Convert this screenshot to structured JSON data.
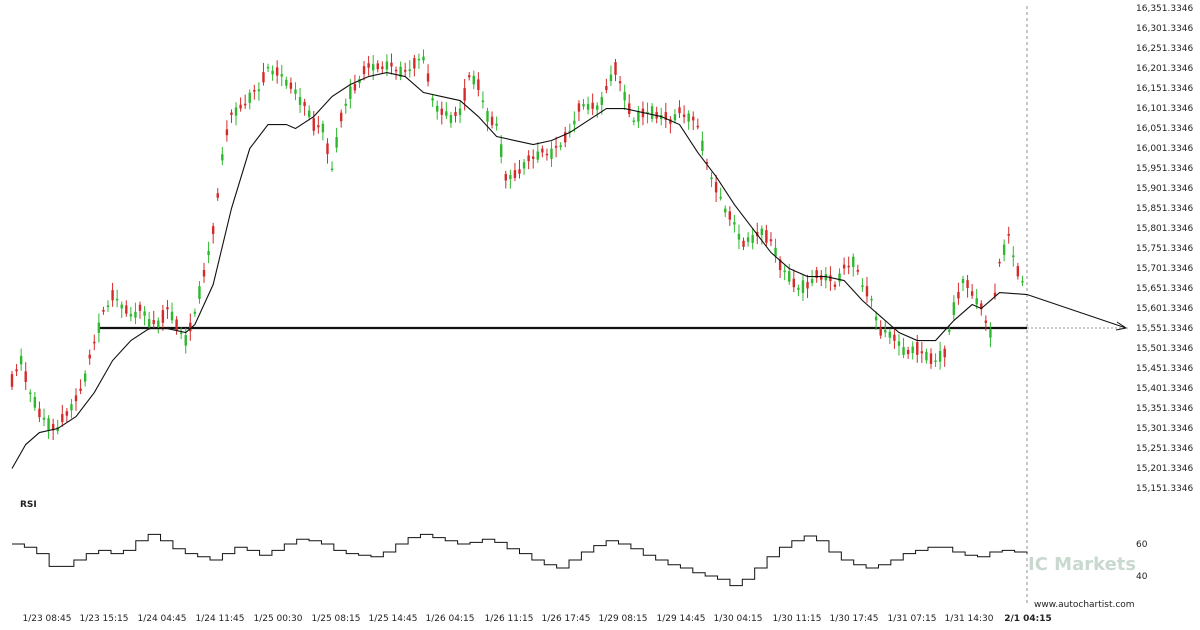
{
  "chart_data": [
    {
      "type": "candlestick",
      "price_range": [
        15151.3346,
        16351.3346
      ],
      "y_ticks": [
        "16,351.3346",
        "16,301.3346",
        "16,251.3346",
        "16,201.3346",
        "16,151.3346",
        "16,101.3346",
        "16,051.3346",
        "16,001.3346",
        "15,951.3346",
        "15,901.3346",
        "15,851.3346",
        "15,801.3346",
        "15,751.3346",
        "15,701.3346",
        "15,651.3346",
        "15,601.3346",
        "15,551.3346",
        "15,501.3346",
        "15,451.3346",
        "15,401.3346",
        "15,351.3346",
        "15,301.3346",
        "15,251.3346",
        "15,201.3346",
        "15,151.3346"
      ],
      "x_ticks": [
        "1/23 08:45",
        "1/23 15:15",
        "1/24 04:45",
        "1/24 11:45",
        "1/25 00:30",
        "1/25 08:15",
        "1/25 14:45",
        "1/26 04:15",
        "1/26 11:15",
        "1/26 17:45",
        "1/29 08:15",
        "1/29 14:45",
        "1/30 04:15",
        "1/30 11:15",
        "1/30 17:45",
        "1/31 07:15",
        "1/31 14:30",
        "2/1 04:15"
      ],
      "highlighted_x_tick": "2/1 04:15",
      "support_level": 15551.3346,
      "forecast_target": 15551.3346,
      "close_points": [
        [
          0,
          15420
        ],
        [
          2,
          15470
        ],
        [
          4,
          15390
        ],
        [
          6,
          15340
        ],
        [
          8,
          15310
        ],
        [
          10,
          15300
        ],
        [
          12,
          15340
        ],
        [
          14,
          15370
        ],
        [
          16,
          15430
        ],
        [
          18,
          15520
        ],
        [
          20,
          15590
        ],
        [
          22,
          15630
        ],
        [
          24,
          15610
        ],
        [
          26,
          15580
        ],
        [
          28,
          15600
        ],
        [
          30,
          15570
        ],
        [
          32,
          15560
        ],
        [
          34,
          15600
        ],
        [
          36,
          15560
        ],
        [
          38,
          15520
        ],
        [
          40,
          15590
        ],
        [
          42,
          15690
        ],
        [
          44,
          15790
        ],
        [
          46,
          15980
        ],
        [
          48,
          16090
        ],
        [
          50,
          16100
        ],
        [
          52,
          16130
        ],
        [
          54,
          16150
        ],
        [
          56,
          16200
        ],
        [
          58,
          16190
        ],
        [
          60,
          16170
        ],
        [
          62,
          16140
        ],
        [
          64,
          16110
        ],
        [
          66,
          16060
        ],
        [
          68,
          16050
        ],
        [
          70,
          15950
        ],
        [
          72,
          16080
        ],
        [
          74,
          16140
        ],
        [
          76,
          16170
        ],
        [
          78,
          16210
        ],
        [
          80,
          16200
        ],
        [
          82,
          16210
        ],
        [
          84,
          16200
        ],
        [
          86,
          16190
        ],
        [
          88,
          16210
        ],
        [
          90,
          16230
        ],
        [
          92,
          16120
        ],
        [
          94,
          16090
        ],
        [
          96,
          16080
        ],
        [
          98,
          16090
        ],
        [
          100,
          16180
        ],
        [
          102,
          16160
        ],
        [
          104,
          16080
        ],
        [
          106,
          16060
        ],
        [
          108,
          15930
        ],
        [
          110,
          15930
        ],
        [
          112,
          15960
        ],
        [
          114,
          15980
        ],
        [
          116,
          15990
        ],
        [
          118,
          15990
        ],
        [
          120,
          16010
        ],
        [
          122,
          16040
        ],
        [
          124,
          16100
        ],
        [
          126,
          16110
        ],
        [
          128,
          16100
        ],
        [
          130,
          16150
        ],
        [
          132,
          16200
        ],
        [
          134,
          16130
        ],
        [
          136,
          16070
        ],
        [
          138,
          16090
        ],
        [
          140,
          16090
        ],
        [
          142,
          16080
        ],
        [
          144,
          16070
        ],
        [
          146,
          16090
        ],
        [
          148,
          16080
        ],
        [
          150,
          16060
        ],
        [
          152,
          15960
        ],
        [
          154,
          15900
        ],
        [
          156,
          15850
        ],
        [
          158,
          15810
        ],
        [
          160,
          15760
        ],
        [
          162,
          15780
        ],
        [
          164,
          15790
        ],
        [
          166,
          15770
        ],
        [
          168,
          15710
        ],
        [
          170,
          15680
        ],
        [
          172,
          15650
        ],
        [
          174,
          15660
        ],
        [
          176,
          15680
        ],
        [
          178,
          15680
        ],
        [
          180,
          15660
        ],
        [
          182,
          15700
        ],
        [
          184,
          15720
        ],
        [
          186,
          15660
        ],
        [
          188,
          15620
        ],
        [
          190,
          15540
        ],
        [
          192,
          15540
        ],
        [
          194,
          15510
        ],
        [
          196,
          15490
        ],
        [
          198,
          15500
        ],
        [
          200,
          15480
        ],
        [
          202,
          15470
        ],
        [
          204,
          15490
        ],
        [
          206,
          15600
        ],
        [
          208,
          15670
        ],
        [
          210,
          15640
        ],
        [
          212,
          15600
        ],
        [
          214,
          15540
        ],
        [
          216,
          15720
        ],
        [
          218,
          15780
        ],
        [
          220,
          15690
        ],
        [
          222,
          15640
        ]
      ],
      "moving_average": [
        [
          0,
          15200
        ],
        [
          3,
          15260
        ],
        [
          6,
          15290
        ],
        [
          10,
          15300
        ],
        [
          14,
          15330
        ],
        [
          18,
          15390
        ],
        [
          22,
          15470
        ],
        [
          26,
          15520
        ],
        [
          30,
          15550
        ],
        [
          34,
          15550
        ],
        [
          38,
          15540
        ],
        [
          40,
          15560
        ],
        [
          44,
          15660
        ],
        [
          48,
          15850
        ],
        [
          52,
          16000
        ],
        [
          56,
          16060
        ],
        [
          60,
          16060
        ],
        [
          62,
          16050
        ],
        [
          66,
          16080
        ],
        [
          70,
          16130
        ],
        [
          74,
          16160
        ],
        [
          78,
          16180
        ],
        [
          82,
          16190
        ],
        [
          86,
          16180
        ],
        [
          90,
          16140
        ],
        [
          94,
          16130
        ],
        [
          98,
          16120
        ],
        [
          102,
          16080
        ],
        [
          106,
          16030
        ],
        [
          110,
          16020
        ],
        [
          114,
          16010
        ],
        [
          118,
          16020
        ],
        [
          122,
          16040
        ],
        [
          126,
          16070
        ],
        [
          130,
          16100
        ],
        [
          134,
          16100
        ],
        [
          138,
          16090
        ],
        [
          142,
          16080
        ],
        [
          146,
          16060
        ],
        [
          150,
          15990
        ],
        [
          154,
          15930
        ],
        [
          158,
          15860
        ],
        [
          162,
          15800
        ],
        [
          166,
          15740
        ],
        [
          170,
          15700
        ],
        [
          174,
          15680
        ],
        [
          178,
          15680
        ],
        [
          182,
          15670
        ],
        [
          186,
          15620
        ],
        [
          190,
          15580
        ],
        [
          194,
          15540
        ],
        [
          198,
          15520
        ],
        [
          202,
          15520
        ],
        [
          206,
          15570
        ],
        [
          210,
          15610
        ],
        [
          212,
          15600
        ],
        [
          214,
          15620
        ],
        [
          216,
          15640
        ],
        [
          222,
          15635
        ]
      ]
    },
    {
      "type": "line",
      "title": "RSI",
      "y_ticks": [
        60,
        40
      ],
      "ylim": [
        30,
        75
      ],
      "values": [
        [
          0,
          60
        ],
        [
          2,
          58
        ],
        [
          4,
          54
        ],
        [
          6,
          46
        ],
        [
          8,
          46
        ],
        [
          10,
          50
        ],
        [
          12,
          54
        ],
        [
          14,
          56
        ],
        [
          16,
          54
        ],
        [
          18,
          56
        ],
        [
          20,
          62
        ],
        [
          22,
          66
        ],
        [
          24,
          62
        ],
        [
          26,
          57
        ],
        [
          28,
          54
        ],
        [
          30,
          52
        ],
        [
          32,
          50
        ],
        [
          34,
          54
        ],
        [
          36,
          58
        ],
        [
          38,
          56
        ],
        [
          40,
          53
        ],
        [
          42,
          56
        ],
        [
          44,
          60
        ],
        [
          46,
          63
        ],
        [
          48,
          62
        ],
        [
          50,
          60
        ],
        [
          52,
          56
        ],
        [
          54,
          54
        ],
        [
          56,
          53
        ],
        [
          58,
          52
        ],
        [
          60,
          55
        ],
        [
          62,
          60
        ],
        [
          64,
          64
        ],
        [
          66,
          66
        ],
        [
          68,
          64
        ],
        [
          70,
          62
        ],
        [
          72,
          60
        ],
        [
          74,
          61
        ],
        [
          76,
          63
        ],
        [
          78,
          61
        ],
        [
          80,
          57
        ],
        [
          82,
          54
        ],
        [
          84,
          50
        ],
        [
          86,
          47
        ],
        [
          88,
          45
        ],
        [
          90,
          50
        ],
        [
          92,
          55
        ],
        [
          94,
          59
        ],
        [
          96,
          62
        ],
        [
          98,
          60
        ],
        [
          100,
          57
        ],
        [
          102,
          53
        ],
        [
          104,
          50
        ],
        [
          106,
          47
        ],
        [
          108,
          45
        ],
        [
          110,
          42
        ],
        [
          112,
          40
        ],
        [
          114,
          38
        ],
        [
          116,
          34
        ],
        [
          118,
          38
        ],
        [
          120,
          45
        ],
        [
          122,
          52
        ],
        [
          124,
          58
        ],
        [
          126,
          62
        ],
        [
          128,
          65
        ],
        [
          130,
          62
        ],
        [
          132,
          55
        ],
        [
          134,
          50
        ],
        [
          136,
          47
        ],
        [
          138,
          45
        ],
        [
          140,
          47
        ],
        [
          142,
          50
        ],
        [
          144,
          54
        ],
        [
          146,
          56
        ],
        [
          148,
          58
        ],
        [
          150,
          58
        ],
        [
          152,
          55
        ],
        [
          154,
          53
        ],
        [
          156,
          52
        ],
        [
          158,
          55
        ],
        [
          160,
          56
        ],
        [
          162,
          55
        ],
        [
          164,
          54
        ]
      ]
    }
  ],
  "rsi_label": "RSI",
  "credit": "www.autochartist.com",
  "watermark": "IC Markets",
  "colors": {
    "bull_candle": "#2eb82e",
    "bear_candle": "#d42a2a",
    "line": "#111111",
    "support": "#111111",
    "grid": "#cccccc",
    "text": "#222222",
    "watermark": "#c9d9cf"
  }
}
